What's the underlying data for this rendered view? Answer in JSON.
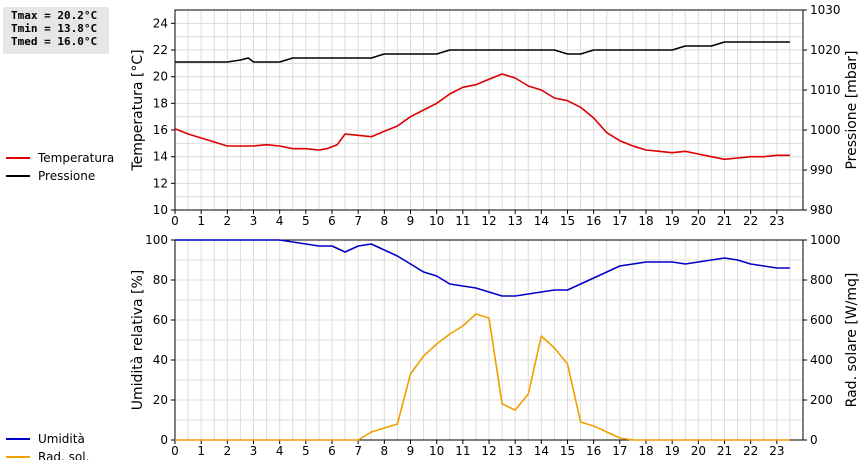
{
  "stats": {
    "tmax": "Tmax = 20.2°C",
    "tmin": "Tmin = 13.8°C",
    "tmed": "Tmed = 16.0°C"
  },
  "chart_data": [
    {
      "type": "line",
      "ylabel_left": "Temperatura [°C]",
      "ylabel_right": "Pressione [mbar]",
      "xlim": [
        0,
        24
      ],
      "x_ticks": [
        0,
        1,
        2,
        3,
        4,
        5,
        6,
        7,
        8,
        9,
        10,
        11,
        12,
        13,
        14,
        15,
        16,
        17,
        18,
        19,
        20,
        21,
        22,
        23
      ],
      "ylim_left": [
        10,
        25
      ],
      "yticks_left": [
        10,
        12,
        14,
        16,
        18,
        20,
        22,
        24
      ],
      "ylim_right": [
        980,
        1030
      ],
      "yticks_right": [
        980,
        990,
        1000,
        1010,
        1020,
        1030
      ],
      "grid": true,
      "legend_position": "left",
      "series": [
        {
          "name": "Temperatura",
          "axis": "left",
          "color": "#dd0000",
          "x": [
            0,
            0.5,
            1,
            1.5,
            2,
            2.5,
            3,
            3.5,
            4,
            4.5,
            5,
            5.5,
            5.8,
            6.2,
            6.5,
            7,
            7.5,
            8,
            8.5,
            9,
            9.5,
            10,
            10.5,
            11,
            11.5,
            12,
            12.5,
            13,
            13.5,
            14,
            14.5,
            15,
            15.5,
            16,
            16.5,
            17,
            17.5,
            18,
            18.5,
            19,
            19.5,
            20,
            20.5,
            21,
            21.5,
            22,
            22.5,
            23,
            23.5
          ],
          "y": [
            16.1,
            15.7,
            15.4,
            15.1,
            14.8,
            14.8,
            14.8,
            14.9,
            14.8,
            14.6,
            14.6,
            14.5,
            14.6,
            14.9,
            15.7,
            15.6,
            15.5,
            15.9,
            16.3,
            17.0,
            17.5,
            18.0,
            18.7,
            19.2,
            19.4,
            19.8,
            20.2,
            19.9,
            19.3,
            19.0,
            18.4,
            18.2,
            17.7,
            16.9,
            15.8,
            15.2,
            14.8,
            14.5,
            14.4,
            14.3,
            14.4,
            14.2,
            14.0,
            13.8,
            13.9,
            14.0,
            14.0,
            14.1,
            14.1
          ]
        },
        {
          "name": "Pressione",
          "axis": "right",
          "color": "#000000",
          "x": [
            0,
            0.5,
            1,
            1.5,
            2,
            2.5,
            2.8,
            3,
            3.5,
            4,
            4.5,
            5,
            5.5,
            6,
            6.5,
            7,
            7.5,
            8,
            8.5,
            9,
            9.5,
            10,
            10.5,
            11,
            11.5,
            12,
            12.5,
            13,
            13.5,
            14,
            14.5,
            15,
            15.5,
            16,
            16.5,
            17,
            17.5,
            18,
            18.5,
            19,
            19.5,
            20,
            20.5,
            21,
            21.5,
            22,
            22.5,
            23,
            23.5
          ],
          "y": [
            1017,
            1017,
            1017,
            1017,
            1017,
            1017.5,
            1018,
            1017,
            1017,
            1017,
            1018,
            1018,
            1018,
            1018,
            1018,
            1018,
            1018,
            1019,
            1019,
            1019,
            1019,
            1019,
            1020,
            1020,
            1020,
            1020,
            1020,
            1020,
            1020,
            1020,
            1020,
            1019,
            1019,
            1020,
            1020,
            1020,
            1020,
            1020,
            1020,
            1020,
            1021,
            1021,
            1021,
            1022,
            1022,
            1022,
            1022,
            1022,
            1022
          ]
        }
      ]
    },
    {
      "type": "line",
      "ylabel_left": "Umidità relativa [%]",
      "ylabel_right": "Rad. solare [W/mq]",
      "xlim": [
        0,
        24
      ],
      "x_ticks": [
        0,
        1,
        2,
        3,
        4,
        5,
        6,
        7,
        8,
        9,
        10,
        11,
        12,
        13,
        14,
        15,
        16,
        17,
        18,
        19,
        20,
        21,
        22,
        23
      ],
      "ylim_left": [
        0,
        100
      ],
      "yticks_left": [
        0,
        20,
        40,
        60,
        80,
        100
      ],
      "ylim_right": [
        0,
        1000
      ],
      "yticks_right": [
        0,
        200,
        400,
        600,
        800,
        1000
      ],
      "grid": true,
      "legend_position": "left",
      "series": [
        {
          "name": "Umidità",
          "axis": "left",
          "color": "#0000cc",
          "x": [
            0,
            0.5,
            1,
            1.5,
            2,
            2.5,
            3,
            3.5,
            4,
            4.5,
            5,
            5.5,
            6,
            6.5,
            7,
            7.5,
            8,
            8.5,
            9,
            9.5,
            10,
            10.5,
            11,
            11.5,
            12,
            12.5,
            13,
            13.5,
            14,
            14.5,
            15,
            15.5,
            16,
            16.5,
            17,
            17.5,
            18,
            18.5,
            19,
            19.5,
            20,
            20.5,
            21,
            21.5,
            22,
            22.5,
            23,
            23.5
          ],
          "y": [
            100,
            100,
            100,
            100,
            100,
            100,
            100,
            100,
            100,
            99,
            98,
            97,
            97,
            94,
            97,
            98,
            95,
            92,
            88,
            84,
            82,
            78,
            77,
            76,
            74,
            72,
            72,
            73,
            74,
            75,
            75,
            78,
            81,
            84,
            87,
            88,
            89,
            89,
            89,
            88,
            89,
            90,
            91,
            90,
            88,
            87,
            86,
            86
          ]
        },
        {
          "name": "Rad. sol.",
          "axis": "right",
          "color": "#f0a000",
          "x": [
            0,
            0.5,
            1,
            1.5,
            2,
            2.5,
            3,
            3.5,
            4,
            4.5,
            5,
            5.5,
            6,
            6.5,
            7,
            7.5,
            8,
            8.5,
            9,
            9.5,
            10,
            10.5,
            11,
            11.5,
            12,
            12.5,
            13,
            13.5,
            14,
            14.5,
            15,
            15.5,
            16,
            16.5,
            17,
            17.5,
            18,
            18.5,
            19,
            19.5,
            20,
            20.5,
            21,
            21.5,
            22,
            22.5,
            23,
            23.5
          ],
          "y": [
            0,
            0,
            0,
            0,
            0,
            0,
            0,
            0,
            0,
            0,
            0,
            0,
            0,
            0,
            0,
            40,
            60,
            80,
            330,
            420,
            480,
            530,
            570,
            630,
            610,
            180,
            150,
            230,
            520,
            460,
            380,
            90,
            70,
            40,
            10,
            0,
            0,
            0,
            0,
            0,
            0,
            0,
            0,
            0,
            0,
            0,
            0,
            0
          ]
        }
      ]
    }
  ]
}
